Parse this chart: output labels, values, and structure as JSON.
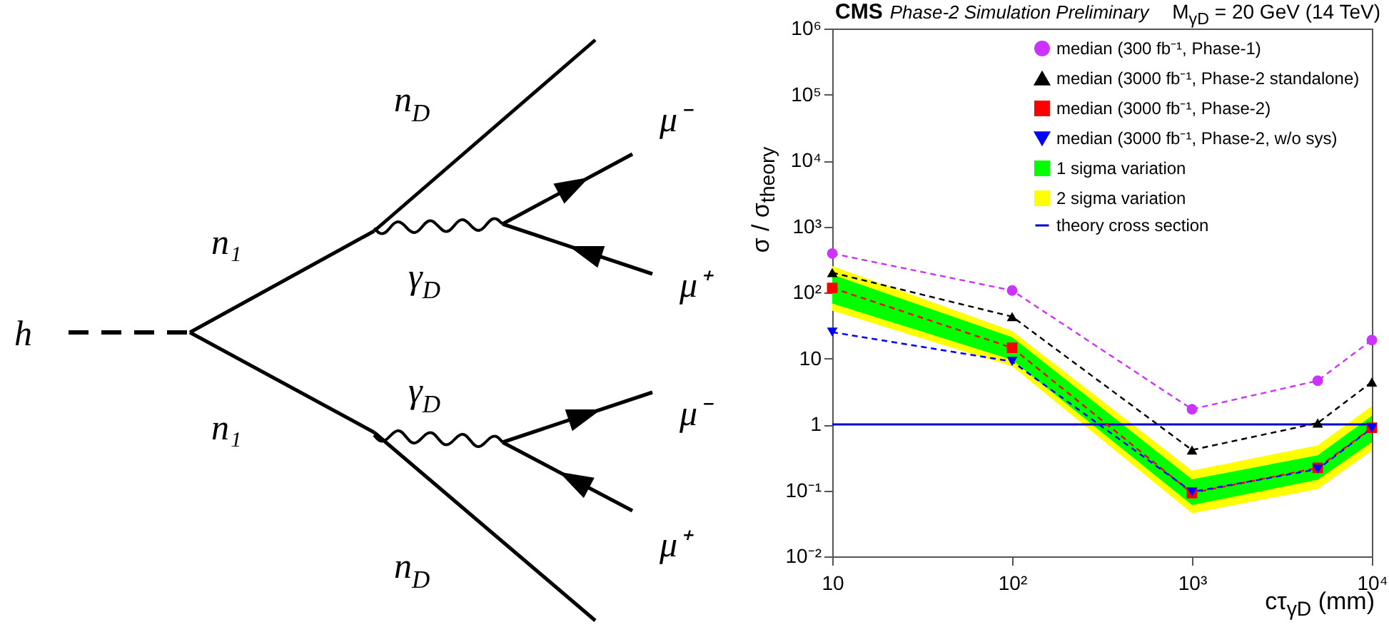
{
  "chart_data": {
    "type": "line",
    "title": "CMS",
    "subtitle": "Phase-2 Simulation Preliminary",
    "xlabel": "cτ$_{γD}$ (mm)",
    "ylabel": "σ / σ$_{theory}$",
    "annotations": [
      "M$_{γD}$ = 20 GeV (14 TeV)",
      "h",
      "n₁",
      "n₁",
      "n$_{D}$",
      "n$_{D}$",
      "γ$_{D}$",
      "γ$_{D}$",
      "μ⁻",
      "μ⁺",
      "μ⁻",
      "μ⁺"
    ],
    "x": [
      10,
      100,
      1000,
      5000,
      10000
    ],
    "series": [
      {
        "name": "median (300 fb⁻¹, Phase-1)",
        "color": "#cc33ff",
        "marker": "circle",
        "values": [
          390,
          107,
          1.7,
          4.6,
          19
        ]
      },
      {
        "name": "median (3000 fb⁻¹, Phase-2 standalone)",
        "color": "#000000",
        "marker": "triangle",
        "values": [
          200,
          43,
          0.41,
          1.05,
          4.4
        ]
      },
      {
        "name": "median (3000 fb⁻¹, Phase-2)",
        "color": "#ff0000",
        "marker": "square",
        "values": [
          117,
          14.5,
          0.091,
          0.22,
          0.89
        ]
      },
      {
        "name": "median (3000 fb⁻¹, Phase-2, w/o sys)",
        "color": "#0000ff",
        "marker": "triangle-down",
        "values": [
          25,
          9,
          0.095,
          0.21,
          0.88
        ]
      },
      {
        "name": "1 sigma variation",
        "color": "#00ff00",
        "values": [
          null,
          null,
          null,
          null,
          null
        ],
        "lower": [
          68,
          9.5,
          0.06,
          0.145,
          0.54
        ],
        "upper": [
          186,
          21,
          0.147,
          0.34,
          1.35
        ]
      },
      {
        "name": "2 sigma variation",
        "color": "#ffff00",
        "values": [
          null,
          null,
          null,
          null,
          null
        ],
        "lower": [
          53,
          7.6,
          0.045,
          0.105,
          0.4
        ],
        "upper": [
          251,
          26,
          0.2,
          0.48,
          1.9
        ]
      }
    ],
    "ref_lines": [
      {
        "axis": "y",
        "value": 1,
        "label": "theory cross section",
        "color": "#0000cc"
      }
    ],
    "xlim": [
      10,
      10000
    ],
    "ylim": [
      0.01,
      1000000
    ],
    "xticks": [
      10,
      {
        "value": 100,
        "label": "10²"
      },
      {
        "value": 1000,
        "label": "10³"
      },
      {
        "value": 10000,
        "label": "10⁴"
      }
    ],
    "yticks": [
      {
        "value": 0.01,
        "label": "10⁻²"
      },
      {
        "value": 0.1,
        "label": "10⁻¹"
      },
      1,
      10,
      {
        "value": 100,
        "label": "10²"
      },
      {
        "value": 1000,
        "label": "10³"
      },
      {
        "value": 10000,
        "label": "10⁴"
      },
      {
        "value": 100000,
        "label": "10⁵"
      },
      {
        "value": 1000000,
        "label": "10⁶"
      }
    ],
    "log": "xy",
    "legend": "top right",
    "line_style": "dashed",
    "grid": false
  }
}
